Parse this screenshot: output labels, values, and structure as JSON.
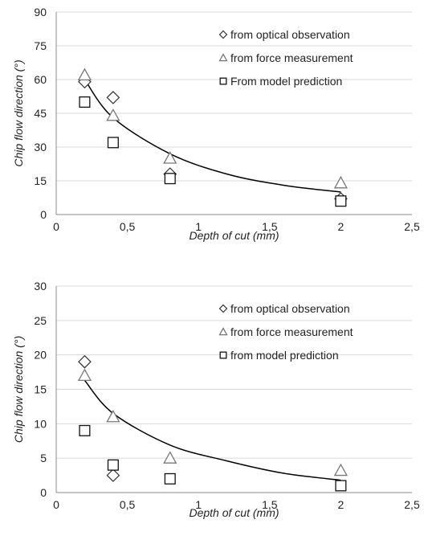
{
  "chart_data": [
    {
      "type": "scatter",
      "xlabel": "Depth of cut (mm)",
      "ylabel": "Chip flow direction (°)",
      "xlim": [
        0,
        2.5
      ],
      "ylim": [
        0,
        90
      ],
      "xticks": [
        0,
        0.5,
        1,
        1.5,
        2,
        2.5
      ],
      "xtick_labels": [
        "0",
        "0,5",
        "1",
        "1,5",
        "2",
        "2,5"
      ],
      "yticks": [
        0,
        15,
        30,
        45,
        60,
        75,
        90
      ],
      "ytick_labels": [
        "0",
        "15",
        "30",
        "45",
        "60",
        "75",
        "90"
      ],
      "grid": "horizontal",
      "legend_position": "top-right",
      "series": [
        {
          "name": "from optical observation",
          "marker": "diamond",
          "x": [
            0.2,
            0.4,
            0.8,
            2
          ],
          "y": [
            59,
            52,
            18,
            7
          ]
        },
        {
          "name": "from force measurement",
          "marker": "triangle",
          "x": [
            0.2,
            0.4,
            0.8,
            2
          ],
          "y": [
            62,
            44,
            25,
            14
          ]
        },
        {
          "name": "From model prediction",
          "marker": "square",
          "x": [
            0.2,
            0.4,
            0.8,
            2
          ],
          "y": [
            50,
            32,
            16,
            6
          ]
        }
      ],
      "trendline": {
        "x": [
          0.2,
          0.4,
          0.8,
          1.2,
          1.6,
          2
        ],
        "y": [
          60,
          43,
          27,
          18,
          13,
          10
        ]
      }
    },
    {
      "type": "scatter",
      "xlabel": "Depth of cut (mm)",
      "ylabel": "Chip flow direction (°)",
      "xlim": [
        0,
        2.5
      ],
      "ylim": [
        0,
        30
      ],
      "xticks": [
        0,
        0.5,
        1,
        1.5,
        2,
        2.5
      ],
      "xtick_labels": [
        "0",
        "0,5",
        "1",
        "1,5",
        "2",
        "2,5"
      ],
      "yticks": [
        0,
        5,
        10,
        15,
        20,
        25,
        30
      ],
      "ytick_labels": [
        "0",
        "5",
        "10",
        "15",
        "20",
        "25",
        "30"
      ],
      "grid": "horizontal",
      "legend_position": "top-right",
      "series": [
        {
          "name": "from optical observation",
          "marker": "diamond",
          "x": [
            0.2,
            0.4
          ],
          "y": [
            19,
            2.5
          ]
        },
        {
          "name": "from force measurement",
          "marker": "triangle",
          "x": [
            0.2,
            0.4,
            0.8,
            2
          ],
          "y": [
            17,
            11,
            5,
            3.2
          ]
        },
        {
          "name": "from model prediction",
          "marker": "square",
          "x": [
            0.2,
            0.4,
            0.8,
            2
          ],
          "y": [
            9,
            4,
            2,
            1
          ]
        }
      ],
      "trendline": {
        "x": [
          0.2,
          0.4,
          0.8,
          1.2,
          1.6,
          2
        ],
        "y": [
          16.3,
          11.5,
          6.9,
          4.6,
          2.8,
          1.8
        ]
      }
    }
  ]
}
